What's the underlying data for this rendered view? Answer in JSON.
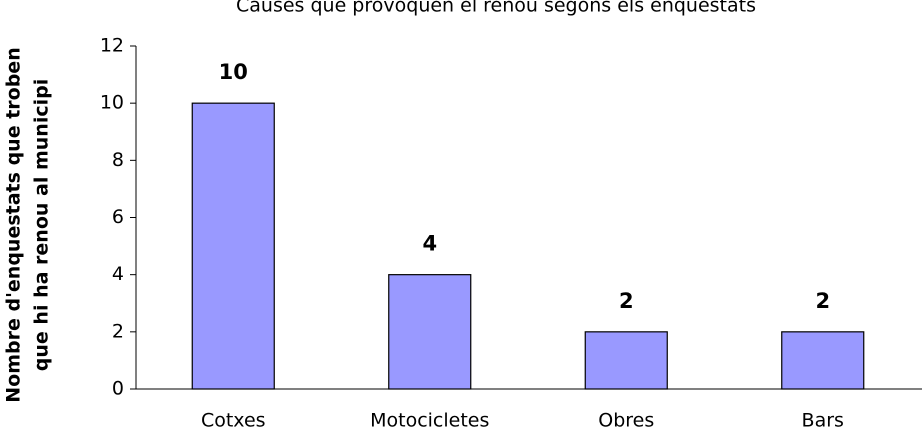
{
  "chart_data": {
    "type": "bar",
    "title": "Causes que provoquen el renou segons els enquestats",
    "ylabel": [
      "Nombre d'enquestats que troben",
      "que hi ha renou al municipi"
    ],
    "categories": [
      "Cotxes",
      "Motocicletes",
      "Obres",
      "Bars"
    ],
    "values": [
      10,
      4,
      2,
      2
    ],
    "color": "#9999ff",
    "ylim": [
      0,
      12
    ],
    "yticks": [
      0,
      2,
      4,
      6,
      8,
      10,
      12
    ],
    "grid": false,
    "data_labels": true
  }
}
